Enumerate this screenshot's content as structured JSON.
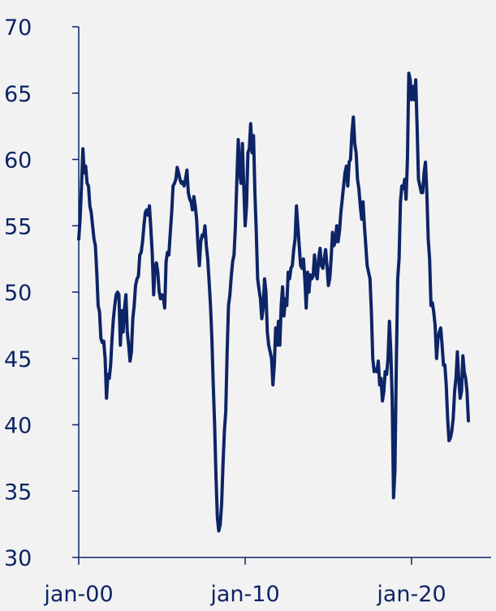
{
  "chart_data": {
    "type": "line",
    "title": "",
    "xlabel": "",
    "ylabel": "",
    "ylim": [
      30,
      70
    ],
    "yticks": [
      30,
      35,
      40,
      45,
      50,
      55,
      60,
      65,
      70
    ],
    "xlim": [
      "2000-01",
      "2025-05"
    ],
    "xticks": [
      {
        "date": "2000-01",
        "label": "jan-00"
      },
      {
        "date": "2010-01",
        "label": "jan-10"
      },
      {
        "date": "2020-01",
        "label": "jan-20"
      }
    ],
    "grid": false,
    "legend": "none",
    "color": "#0d2466",
    "series": [
      {
        "points": [
          [
            "2000-01",
            54.0
          ],
          [
            "2000-02",
            55.5
          ],
          [
            "2000-03",
            58.0
          ],
          [
            "2000-04",
            60.8
          ],
          [
            "2000-05",
            59.0
          ],
          [
            "2000-06",
            59.5
          ],
          [
            "2000-07",
            58.2
          ],
          [
            "2000-08",
            58.0
          ],
          [
            "2000-09",
            56.5
          ],
          [
            "2000-10",
            56.0
          ],
          [
            "2000-11",
            55.0
          ],
          [
            "2000-12",
            54.0
          ],
          [
            "2001-01",
            53.5
          ],
          [
            "2001-02",
            51.5
          ],
          [
            "2001-03",
            49.0
          ],
          [
            "2001-04",
            48.5
          ],
          [
            "2001-05",
            46.5
          ],
          [
            "2001-06",
            46.2
          ],
          [
            "2001-07",
            46.3
          ],
          [
            "2001-08",
            45.0
          ],
          [
            "2001-09",
            42.0
          ],
          [
            "2001-10",
            43.8
          ],
          [
            "2001-11",
            43.5
          ],
          [
            "2001-12",
            44.5
          ],
          [
            "2002-01",
            46.5
          ],
          [
            "2002-02",
            48.0
          ],
          [
            "2002-03",
            49.0
          ],
          [
            "2002-04",
            49.8
          ],
          [
            "2002-05",
            50.0
          ],
          [
            "2002-06",
            49.8
          ],
          [
            "2002-07",
            46.0
          ],
          [
            "2002-08",
            48.6
          ],
          [
            "2002-09",
            47.0
          ],
          [
            "2002-10",
            48.8
          ],
          [
            "2002-11",
            49.8
          ],
          [
            "2002-12",
            47.0
          ],
          [
            "2003-01",
            46.0
          ],
          [
            "2003-02",
            44.8
          ],
          [
            "2003-03",
            45.5
          ],
          [
            "2003-04",
            48.0
          ],
          [
            "2003-05",
            49.0
          ],
          [
            "2003-06",
            50.5
          ],
          [
            "2003-07",
            51.0
          ],
          [
            "2003-08",
            51.2
          ],
          [
            "2003-09",
            52.8
          ],
          [
            "2003-10",
            53.0
          ],
          [
            "2003-11",
            53.8
          ],
          [
            "2003-12",
            55.0
          ],
          [
            "2004-01",
            56.0
          ],
          [
            "2004-02",
            56.2
          ],
          [
            "2004-03",
            55.8
          ],
          [
            "2004-04",
            56.5
          ],
          [
            "2004-05",
            54.8
          ],
          [
            "2004-06",
            53.0
          ],
          [
            "2004-07",
            49.8
          ],
          [
            "2004-08",
            52.0
          ],
          [
            "2004-09",
            52.2
          ],
          [
            "2004-10",
            51.5
          ],
          [
            "2004-11",
            50.0
          ],
          [
            "2004-12",
            49.5
          ],
          [
            "2005-01",
            49.8
          ],
          [
            "2005-02",
            49.6
          ],
          [
            "2005-03",
            48.8
          ],
          [
            "2005-04",
            52.3
          ],
          [
            "2005-05",
            53.0
          ],
          [
            "2005-06",
            52.8
          ],
          [
            "2005-07",
            54.5
          ],
          [
            "2005-08",
            56.0
          ],
          [
            "2005-09",
            58.0
          ],
          [
            "2005-10",
            58.2
          ],
          [
            "2005-11",
            58.5
          ],
          [
            "2005-12",
            59.4
          ],
          [
            "2006-01",
            59.0
          ],
          [
            "2006-02",
            58.5
          ],
          [
            "2006-03",
            58.2
          ],
          [
            "2006-04",
            58.3
          ],
          [
            "2006-05",
            58.0
          ],
          [
            "2006-06",
            58.5
          ],
          [
            "2006-07",
            59.2
          ],
          [
            "2006-08",
            57.5
          ],
          [
            "2006-09",
            57.0
          ],
          [
            "2006-10",
            56.8
          ],
          [
            "2006-11",
            56.2
          ],
          [
            "2006-12",
            57.2
          ],
          [
            "2007-01",
            56.5
          ],
          [
            "2007-02",
            55.5
          ],
          [
            "2007-03",
            53.5
          ],
          [
            "2007-04",
            52.0
          ],
          [
            "2007-05",
            53.8
          ],
          [
            "2007-06",
            54.3
          ],
          [
            "2007-07",
            54.2
          ],
          [
            "2007-08",
            55.0
          ],
          [
            "2007-09",
            53.5
          ],
          [
            "2007-10",
            52.5
          ],
          [
            "2007-11",
            50.8
          ],
          [
            "2007-12",
            49.0
          ],
          [
            "2008-01",
            46.5
          ],
          [
            "2008-02",
            43.0
          ],
          [
            "2008-03",
            40.0
          ],
          [
            "2008-04",
            36.0
          ],
          [
            "2008-05",
            33.0
          ],
          [
            "2008-06",
            32.0
          ],
          [
            "2008-07",
            32.5
          ],
          [
            "2008-08",
            34.0
          ],
          [
            "2008-09",
            37.0
          ],
          [
            "2008-10",
            39.5
          ],
          [
            "2008-11",
            41.0
          ],
          [
            "2008-12",
            45.5
          ],
          [
            "2009-01",
            49.0
          ],
          [
            "2009-02",
            49.8
          ],
          [
            "2009-03",
            51.2
          ],
          [
            "2009-04",
            52.3
          ],
          [
            "2009-05",
            52.8
          ],
          [
            "2009-06",
            55.0
          ],
          [
            "2009-07",
            58.5
          ],
          [
            "2009-08",
            61.5
          ],
          [
            "2009-09",
            59.0
          ],
          [
            "2009-10",
            58.2
          ],
          [
            "2009-11",
            61.2
          ],
          [
            "2009-12",
            58.0
          ],
          [
            "2010-01",
            55.0
          ],
          [
            "2010-02",
            56.5
          ],
          [
            "2010-03",
            60.5
          ],
          [
            "2010-04",
            60.8
          ],
          [
            "2010-05",
            62.7
          ],
          [
            "2010-06",
            60.5
          ],
          [
            "2010-07",
            61.8
          ],
          [
            "2010-08",
            57.5
          ],
          [
            "2010-09",
            54.5
          ],
          [
            "2010-10",
            51.0
          ],
          [
            "2010-11",
            50.2
          ],
          [
            "2010-12",
            49.5
          ],
          [
            "2011-01",
            48.0
          ],
          [
            "2011-02",
            48.8
          ],
          [
            "2011-03",
            51.0
          ],
          [
            "2011-04",
            50.0
          ],
          [
            "2011-05",
            47.0
          ],
          [
            "2011-06",
            46.0
          ],
          [
            "2011-07",
            45.5
          ],
          [
            "2011-08",
            45.0
          ],
          [
            "2011-09",
            43.0
          ],
          [
            "2011-10",
            44.5
          ],
          [
            "2011-11",
            47.3
          ],
          [
            "2011-12",
            46.0
          ],
          [
            "2012-01",
            47.8
          ],
          [
            "2012-02",
            46.0
          ],
          [
            "2012-03",
            49.0
          ],
          [
            "2012-04",
            50.4
          ],
          [
            "2012-05",
            48.2
          ],
          [
            "2012-06",
            49.5
          ],
          [
            "2012-07",
            49.0
          ],
          [
            "2012-08",
            51.5
          ],
          [
            "2012-09",
            51.0
          ],
          [
            "2012-10",
            51.8
          ],
          [
            "2012-11",
            52.0
          ],
          [
            "2012-12",
            53.2
          ],
          [
            "2013-01",
            54.0
          ],
          [
            "2013-02",
            56.5
          ],
          [
            "2013-03",
            55.0
          ],
          [
            "2013-04",
            53.5
          ],
          [
            "2013-05",
            52.0
          ],
          [
            "2013-06",
            51.8
          ],
          [
            "2013-07",
            52.5
          ],
          [
            "2013-08",
            51.0
          ],
          [
            "2013-09",
            48.8
          ],
          [
            "2013-10",
            51.5
          ],
          [
            "2013-11",
            50.0
          ],
          [
            "2013-12",
            51.3
          ],
          [
            "2014-01",
            51.0
          ],
          [
            "2014-02",
            51.2
          ],
          [
            "2014-03",
            52.8
          ],
          [
            "2014-04",
            51.5
          ],
          [
            "2014-05",
            51.0
          ],
          [
            "2014-06",
            52.5
          ],
          [
            "2014-07",
            53.3
          ],
          [
            "2014-08",
            52.0
          ],
          [
            "2014-09",
            51.8
          ],
          [
            "2014-10",
            52.5
          ],
          [
            "2014-11",
            53.2
          ],
          [
            "2014-12",
            52.0
          ],
          [
            "2015-01",
            50.5
          ],
          [
            "2015-02",
            51.0
          ],
          [
            "2015-03",
            52.5
          ],
          [
            "2015-04",
            54.5
          ],
          [
            "2015-05",
            53.5
          ],
          [
            "2015-06",
            53.8
          ],
          [
            "2015-07",
            55.0
          ],
          [
            "2015-08",
            53.8
          ],
          [
            "2015-09",
            54.6
          ],
          [
            "2015-10",
            56.0
          ],
          [
            "2015-11",
            57.0
          ],
          [
            "2015-12",
            58.0
          ],
          [
            "2016-01",
            59.0
          ],
          [
            "2016-02",
            59.5
          ],
          [
            "2016-03",
            58.0
          ],
          [
            "2016-04",
            59.8
          ],
          [
            "2016-05",
            60.0
          ],
          [
            "2016-06",
            62.0
          ],
          [
            "2016-07",
            63.2
          ],
          [
            "2016-08",
            61.2
          ],
          [
            "2016-09",
            60.5
          ],
          [
            "2016-10",
            58.5
          ],
          [
            "2016-11",
            57.8
          ],
          [
            "2016-12",
            56.5
          ],
          [
            "2017-01",
            55.5
          ],
          [
            "2017-02",
            56.8
          ],
          [
            "2017-03",
            55.0
          ],
          [
            "2017-04",
            53.5
          ],
          [
            "2017-05",
            52.0
          ],
          [
            "2017-06",
            51.5
          ],
          [
            "2017-07",
            51.0
          ],
          [
            "2017-08",
            48.5
          ],
          [
            "2017-09",
            45.0
          ],
          [
            "2017-10",
            44.0
          ],
          [
            "2017-11",
            44.2
          ],
          [
            "2017-12",
            44.0
          ],
          [
            "2018-01",
            44.8
          ],
          [
            "2018-02",
            43.0
          ],
          [
            "2018-03",
            43.5
          ],
          [
            "2018-04",
            41.8
          ],
          [
            "2018-05",
            42.5
          ],
          [
            "2018-06",
            44.0
          ],
          [
            "2018-07",
            43.8
          ],
          [
            "2018-08",
            45.0
          ],
          [
            "2018-09",
            47.8
          ],
          [
            "2018-10",
            45.5
          ],
          [
            "2018-11",
            42.0
          ],
          [
            "2018-12",
            34.5
          ],
          [
            "2019-01",
            36.5
          ],
          [
            "2019-02",
            44.5
          ],
          [
            "2019-03",
            51.0
          ],
          [
            "2019-04",
            52.5
          ],
          [
            "2019-05",
            56.8
          ],
          [
            "2019-06",
            58.0
          ],
          [
            "2019-07",
            57.8
          ],
          [
            "2019-08",
            58.5
          ],
          [
            "2019-09",
            57.0
          ],
          [
            "2019-10",
            60.0
          ],
          [
            "2019-11",
            66.5
          ],
          [
            "2019-12",
            66.0
          ],
          [
            "2020-01",
            64.5
          ],
          [
            "2020-02",
            65.5
          ],
          [
            "2020-03",
            64.5
          ],
          [
            "2020-04",
            66.0
          ],
          [
            "2020-05",
            62.5
          ],
          [
            "2020-06",
            58.5
          ],
          [
            "2020-07",
            58.0
          ],
          [
            "2020-08",
            57.5
          ],
          [
            "2020-09",
            57.5
          ],
          [
            "2020-10",
            59.0
          ],
          [
            "2020-11",
            59.8
          ],
          [
            "2020-12",
            57.5
          ],
          [
            "2021-01",
            54.0
          ],
          [
            "2021-02",
            52.5
          ],
          [
            "2021-03",
            49.0
          ],
          [
            "2021-04",
            49.2
          ],
          [
            "2021-05",
            48.5
          ],
          [
            "2021-06",
            47.5
          ],
          [
            "2021-07",
            45.0
          ],
          [
            "2021-08",
            46.5
          ],
          [
            "2021-09",
            47.0
          ],
          [
            "2021-10",
            47.3
          ],
          [
            "2021-11",
            46.0
          ],
          [
            "2021-12",
            44.5
          ],
          [
            "2022-01",
            44.5
          ],
          [
            "2022-02",
            43.0
          ],
          [
            "2022-03",
            40.5
          ],
          [
            "2022-04",
            38.8
          ],
          [
            "2022-05",
            39.0
          ],
          [
            "2022-06",
            39.5
          ],
          [
            "2022-07",
            40.5
          ],
          [
            "2022-08",
            42.5
          ],
          [
            "2022-09",
            43.5
          ],
          [
            "2022-10",
            45.5
          ],
          [
            "2022-11",
            43.5
          ],
          [
            "2022-12",
            42.0
          ],
          [
            "2023-01",
            42.5
          ],
          [
            "2023-02",
            45.2
          ],
          [
            "2023-03",
            44.0
          ],
          [
            "2023-04",
            43.5
          ],
          [
            "2023-05",
            42.5
          ],
          [
            "2023-06",
            40.3
          ]
        ]
      }
    ]
  }
}
